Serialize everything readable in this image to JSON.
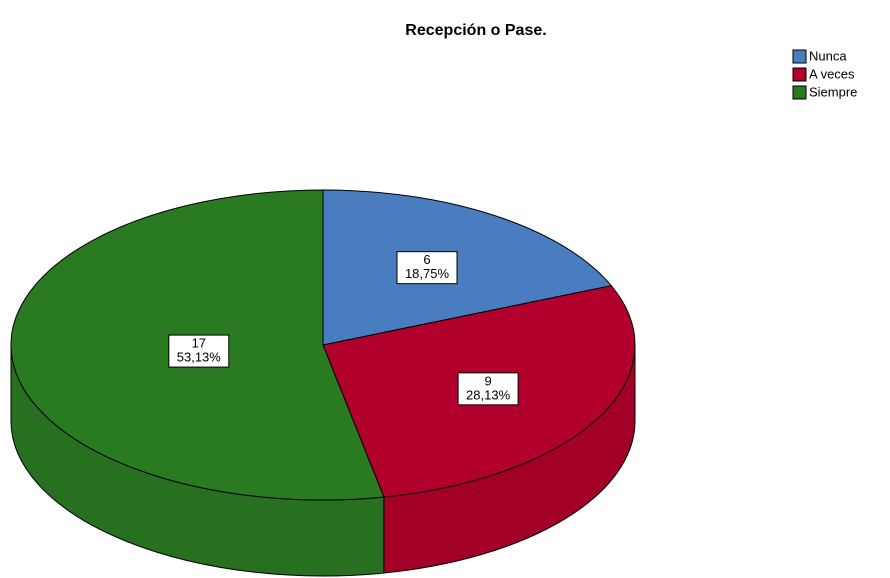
{
  "chart_data": {
    "type": "pie3d",
    "title": "Recepción o Pase.",
    "categories": [
      "Nunca",
      "A veces",
      "Siempre"
    ],
    "values": [
      6,
      9,
      17
    ],
    "percent_labels": [
      "18,75%",
      "28,13%",
      "53,13%"
    ],
    "colors": [
      "#4a7dc0",
      "#b0002b",
      "#2a7a22"
    ],
    "legend": "top-right"
  }
}
